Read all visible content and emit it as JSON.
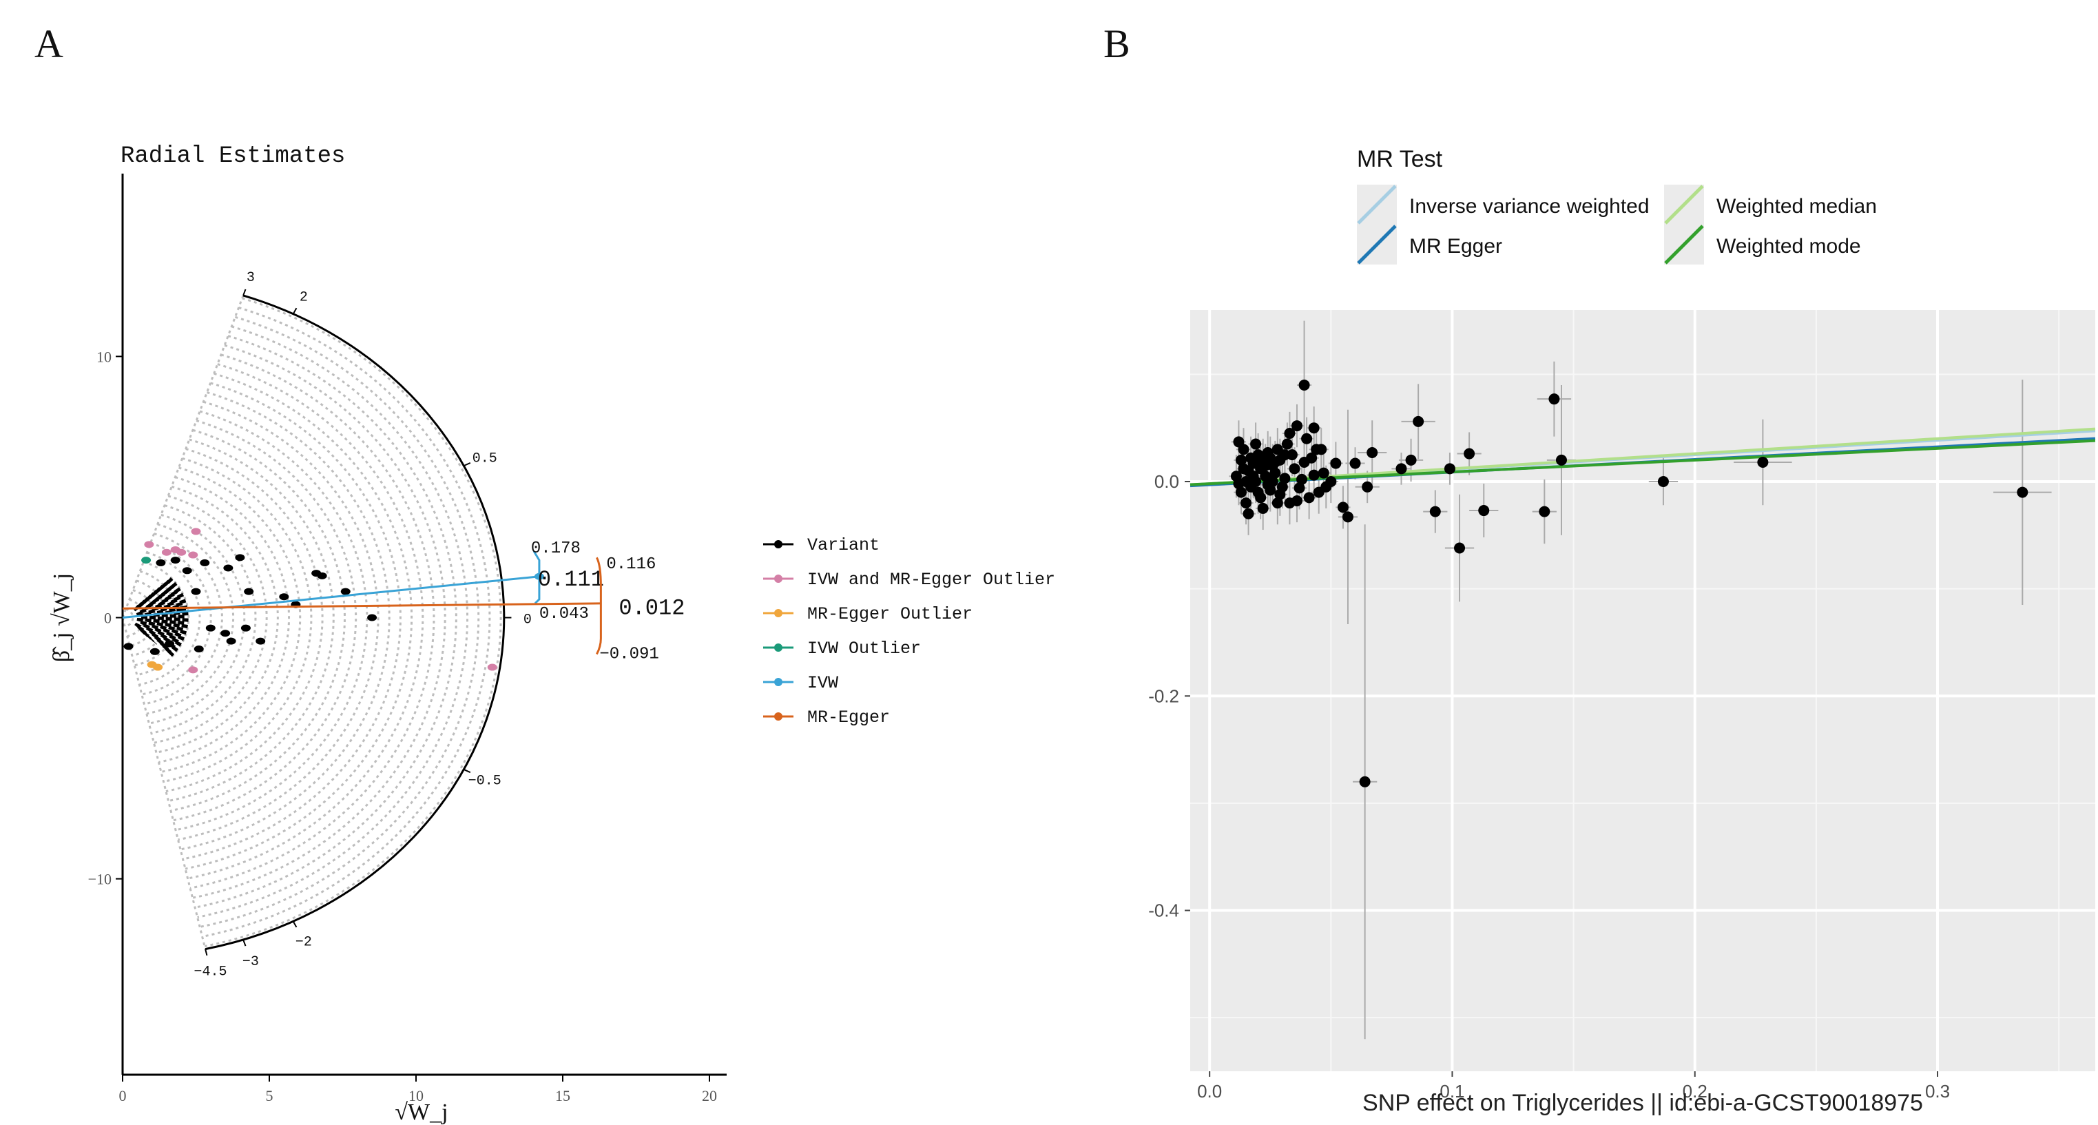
{
  "panels": {
    "a_label": "A",
    "b_label": "B"
  },
  "colors": {
    "variant": "#000000",
    "ivw_egger_outlier": "#d47fa6",
    "egger_outlier": "#f0a63c",
    "ivw_outlier": "#1a9a79",
    "ivw": "#39a3d6",
    "egger": "#d8631c",
    "panel_bg": "#ebebeb",
    "ivw_line_b": "#a6cee3",
    "egger_line_b": "#1f78b4",
    "wmedian_line_b": "#b2df8a",
    "wmode_line_b": "#33a02c"
  },
  "chart_data": [
    {
      "type": "scatter",
      "title": "Radial Estimates",
      "xlabel": "√W_j",
      "ylabel": "β̂_j √W_j",
      "xlim": [
        0,
        20
      ],
      "ylim": [
        -17.5,
        17
      ],
      "xticks": [
        0,
        5,
        10,
        15,
        20
      ],
      "yticks": [
        -10,
        0,
        10
      ],
      "xtick_labels": [
        "0",
        "5",
        "10",
        "15",
        "20"
      ],
      "ytick_labels": [
        "−10",
        "0",
        "10"
      ],
      "radial_scale": {
        "radius": 13,
        "labels": [
          {
            "value": 3,
            "text": "3"
          },
          {
            "value": 2,
            "text": "2"
          },
          {
            "value": 0.5,
            "text": "0.5"
          },
          {
            "value": 0,
            "text": "0"
          },
          {
            "value": -0.5,
            "text": "−0.5"
          },
          {
            "value": -2,
            "text": "−2"
          },
          {
            "value": -3,
            "text": "−3"
          },
          {
            "value": -4.5,
            "text": "−4.5"
          }
        ]
      },
      "estimates": {
        "ivw": {
          "estimate": 0.111,
          "upper": 0.178,
          "lower": 0.043,
          "labels": [
            "0.178",
            "0.111",
            "0.043"
          ]
        },
        "egger": {
          "estimate": 0.012,
          "upper": 0.116,
          "lower": -0.091,
          "intercept": 0.35,
          "labels": [
            "0.116",
            "0.012",
            "−0.091"
          ]
        }
      },
      "legend": {
        "position": "right",
        "entries": [
          {
            "label": "Variant",
            "color_key": "variant"
          },
          {
            "label": "IVW and MR-Egger Outlier",
            "color_key": "ivw_egger_outlier"
          },
          {
            "label": "MR-Egger Outlier",
            "color_key": "egger_outlier"
          },
          {
            "label": "IVW Outlier",
            "color_key": "ivw_outlier"
          },
          {
            "label": "IVW",
            "color_key": "ivw"
          },
          {
            "label": "MR-Egger",
            "color_key": "egger"
          }
        ]
      },
      "points": {
        "variant": [
          [
            4.0,
            2.3
          ],
          [
            4.3,
            1.0
          ],
          [
            4.2,
            -0.4
          ],
          [
            3.5,
            -0.6
          ],
          [
            3.7,
            -0.9
          ],
          [
            3.6,
            1.9
          ],
          [
            4.7,
            -0.9
          ],
          [
            5.5,
            0.8
          ],
          [
            5.9,
            0.5
          ],
          [
            6.6,
            1.7
          ],
          [
            6.8,
            1.6
          ],
          [
            7.6,
            1.0
          ],
          [
            8.5,
            0.0
          ],
          [
            2.8,
            2.1
          ],
          [
            2.5,
            1.0
          ],
          [
            3.0,
            -0.4
          ],
          [
            2.6,
            -1.2
          ],
          [
            0.2,
            -1.1
          ],
          [
            1.3,
            2.1
          ],
          [
            1.8,
            2.2
          ],
          [
            2.2,
            1.8
          ],
          [
            1.1,
            -1.3
          ],
          [
            1.6,
            -1.0
          ],
          [
            2.0,
            0.3
          ]
        ],
        "ivw_egger_outlier": [
          [
            0.9,
            2.8
          ],
          [
            1.5,
            2.5
          ],
          [
            1.8,
            2.6
          ],
          [
            2.0,
            2.5
          ],
          [
            2.4,
            2.4
          ],
          [
            2.5,
            3.3
          ],
          [
            2.4,
            -2.0
          ],
          [
            12.6,
            -1.9
          ]
        ],
        "egger_outlier": [
          [
            1.0,
            -1.8
          ],
          [
            1.2,
            -1.9
          ]
        ],
        "ivw_outlier": [
          [
            0.8,
            2.2
          ]
        ]
      }
    },
    {
      "type": "scatter",
      "title": "",
      "xlabel": "SNP effect on Triglycerides || id:ebi-a-GCST90018975",
      "ylabel": "",
      "xlim": [
        -0.008,
        0.365
      ],
      "ylim": [
        -0.55,
        0.16
      ],
      "xticks": [
        0.0,
        0.1,
        0.2,
        0.3
      ],
      "yticks": [
        0.0,
        -0.2,
        -0.4
      ],
      "xtick_labels": [
        "0.0",
        "0.1",
        "0.2",
        "0.3"
      ],
      "ytick_labels": [
        "0.0",
        "-0.2",
        "-0.4"
      ],
      "legend": {
        "title": "MR Test",
        "position": "top",
        "entries": [
          {
            "label": "Inverse variance weighted",
            "color_key": "ivw_line_b"
          },
          {
            "label": "MR Egger",
            "color_key": "egger_line_b"
          },
          {
            "label": "Weighted median",
            "color_key": "wmedian_line_b"
          },
          {
            "label": "Weighted mode",
            "color_key": "wmode_line_b"
          }
        ]
      },
      "lines": [
        {
          "name": "Inverse variance weighted",
          "color_key": "ivw_line_b",
          "slope": 0.135,
          "intercept": -0.002
        },
        {
          "name": "Weighted median",
          "color_key": "wmedian_line_b",
          "slope": 0.14,
          "intercept": -0.002
        },
        {
          "name": "MR Egger",
          "color_key": "egger_line_b",
          "slope": 0.118,
          "intercept": -0.003
        },
        {
          "name": "Weighted mode",
          "color_key": "wmode_line_b",
          "slope": 0.11,
          "intercept": -0.002
        }
      ],
      "points": [
        {
          "x": 0.039,
          "y": 0.09,
          "xerr": 0.003,
          "yerr": 0.06
        },
        {
          "x": 0.086,
          "y": 0.056,
          "xerr": 0.007,
          "yerr": 0.035
        },
        {
          "x": 0.142,
          "y": 0.077,
          "xerr": 0.007,
          "yerr": 0.035
        },
        {
          "x": 0.145,
          "y": 0.02,
          "xerr": 0.006,
          "yerr": 0.07
        },
        {
          "x": 0.107,
          "y": 0.026,
          "xerr": 0.005,
          "yerr": 0.02
        },
        {
          "x": 0.083,
          "y": 0.02,
          "xerr": 0.005,
          "yerr": 0.02
        },
        {
          "x": 0.099,
          "y": 0.012,
          "xerr": 0.004,
          "yerr": 0.015
        },
        {
          "x": 0.079,
          "y": 0.012,
          "xerr": 0.004,
          "yerr": 0.015
        },
        {
          "x": 0.067,
          "y": 0.027,
          "xerr": 0.006,
          "yerr": 0.03
        },
        {
          "x": 0.187,
          "y": 0.0,
          "xerr": 0.006,
          "yerr": 0.022
        },
        {
          "x": 0.228,
          "y": 0.018,
          "xerr": 0.012,
          "yerr": 0.04
        },
        {
          "x": 0.335,
          "y": -0.01,
          "xerr": 0.012,
          "yerr": 0.105
        },
        {
          "x": 0.093,
          "y": -0.028,
          "xerr": 0.005,
          "yerr": 0.02
        },
        {
          "x": 0.103,
          "y": -0.062,
          "xerr": 0.006,
          "yerr": 0.05
        },
        {
          "x": 0.113,
          "y": -0.027,
          "xerr": 0.006,
          "yerr": 0.025
        },
        {
          "x": 0.138,
          "y": -0.028,
          "xerr": 0.005,
          "yerr": 0.03
        },
        {
          "x": 0.064,
          "y": -0.28,
          "xerr": 0.005,
          "yerr": 0.24
        },
        {
          "x": 0.057,
          "y": -0.033,
          "xerr": 0.004,
          "yerr": 0.1
        },
        {
          "x": 0.065,
          "y": -0.005,
          "xerr": 0.005,
          "yerr": 0.015
        },
        {
          "x": 0.06,
          "y": 0.017,
          "xerr": 0.004,
          "yerr": 0.015
        },
        {
          "x": 0.055,
          "y": -0.024,
          "xerr": 0.003,
          "yerr": 0.02
        },
        {
          "x": 0.052,
          "y": 0.017,
          "xerr": 0.003,
          "yerr": 0.02
        },
        {
          "x": 0.046,
          "y": 0.03,
          "xerr": 0.003,
          "yerr": 0.02
        },
        {
          "x": 0.048,
          "y": -0.005,
          "xerr": 0.003,
          "yerr": 0.02
        },
        {
          "x": 0.043,
          "y": 0.05,
          "xerr": 0.003,
          "yerr": 0.02
        },
        {
          "x": 0.036,
          "y": 0.052,
          "xerr": 0.003,
          "yerr": 0.02
        },
        {
          "x": 0.033,
          "y": 0.045,
          "xerr": 0.003,
          "yerr": 0.02
        },
        {
          "x": 0.04,
          "y": 0.04,
          "xerr": 0.003,
          "yerr": 0.02
        },
        {
          "x": 0.031,
          "y": 0.025,
          "xerr": 0.003,
          "yerr": 0.02
        },
        {
          "x": 0.028,
          "y": 0.03,
          "xerr": 0.003,
          "yerr": 0.02
        },
        {
          "x": 0.026,
          "y": 0.015,
          "xerr": 0.003,
          "yerr": 0.02
        },
        {
          "x": 0.024,
          "y": 0.027,
          "xerr": 0.003,
          "yerr": 0.02
        },
        {
          "x": 0.022,
          "y": 0.02,
          "xerr": 0.003,
          "yerr": 0.02
        },
        {
          "x": 0.02,
          "y": 0.025,
          "xerr": 0.003,
          "yerr": 0.02
        },
        {
          "x": 0.018,
          "y": 0.017,
          "xerr": 0.003,
          "yerr": 0.02
        },
        {
          "x": 0.016,
          "y": 0.01,
          "xerr": 0.003,
          "yerr": 0.02
        },
        {
          "x": 0.014,
          "y": 0.03,
          "xerr": 0.003,
          "yerr": 0.02
        },
        {
          "x": 0.012,
          "y": 0.037,
          "xerr": 0.003,
          "yerr": 0.02
        },
        {
          "x": 0.011,
          "y": 0.005,
          "xerr": 0.003,
          "yerr": 0.02
        },
        {
          "x": 0.013,
          "y": -0.01,
          "xerr": 0.003,
          "yerr": 0.02
        },
        {
          "x": 0.015,
          "y": -0.02,
          "xerr": 0.003,
          "yerr": 0.02
        },
        {
          "x": 0.017,
          "y": -0.005,
          "xerr": 0.003,
          "yerr": 0.02
        },
        {
          "x": 0.019,
          "y": 0.0,
          "xerr": 0.003,
          "yerr": 0.02
        },
        {
          "x": 0.021,
          "y": -0.015,
          "xerr": 0.003,
          "yerr": 0.02
        },
        {
          "x": 0.023,
          "y": 0.005,
          "xerr": 0.003,
          "yerr": 0.02
        },
        {
          "x": 0.025,
          "y": -0.008,
          "xerr": 0.003,
          "yerr": 0.02
        },
        {
          "x": 0.027,
          "y": 0.008,
          "xerr": 0.003,
          "yerr": 0.02
        },
        {
          "x": 0.029,
          "y": -0.012,
          "xerr": 0.003,
          "yerr": 0.02
        },
        {
          "x": 0.031,
          "y": 0.003,
          "xerr": 0.003,
          "yerr": 0.02
        },
        {
          "x": 0.033,
          "y": -0.02,
          "xerr": 0.003,
          "yerr": 0.02
        },
        {
          "x": 0.035,
          "y": 0.012,
          "xerr": 0.003,
          "yerr": 0.02
        },
        {
          "x": 0.037,
          "y": -0.006,
          "xerr": 0.003,
          "yerr": 0.02
        },
        {
          "x": 0.039,
          "y": 0.018,
          "xerr": 0.003,
          "yerr": 0.02
        },
        {
          "x": 0.041,
          "y": -0.015,
          "xerr": 0.003,
          "yerr": 0.02
        },
        {
          "x": 0.043,
          "y": 0.006,
          "xerr": 0.003,
          "yerr": 0.02
        },
        {
          "x": 0.045,
          "y": -0.01,
          "xerr": 0.003,
          "yerr": 0.02
        },
        {
          "x": 0.013,
          "y": 0.02,
          "xerr": 0.003,
          "yerr": 0.02
        },
        {
          "x": 0.016,
          "y": -0.03,
          "xerr": 0.003,
          "yerr": 0.02
        },
        {
          "x": 0.019,
          "y": 0.035,
          "xerr": 0.003,
          "yerr": 0.02
        },
        {
          "x": 0.022,
          "y": -0.025,
          "xerr": 0.003,
          "yerr": 0.02
        },
        {
          "x": 0.025,
          "y": 0.022,
          "xerr": 0.003,
          "yerr": 0.02
        },
        {
          "x": 0.028,
          "y": -0.02,
          "xerr": 0.003,
          "yerr": 0.02
        },
        {
          "x": 0.012,
          "y": -0.002,
          "xerr": 0.003,
          "yerr": 0.02
        },
        {
          "x": 0.014,
          "y": 0.012,
          "xerr": 0.003,
          "yerr": 0.02
        },
        {
          "x": 0.018,
          "y": 0.005,
          "xerr": 0.003,
          "yerr": 0.02
        },
        {
          "x": 0.021,
          "y": 0.012,
          "xerr": 0.003,
          "yerr": 0.02
        },
        {
          "x": 0.024,
          "y": -0.003,
          "xerr": 0.003,
          "yerr": 0.02
        },
        {
          "x": 0.027,
          "y": 0.018,
          "xerr": 0.003,
          "yerr": 0.02
        },
        {
          "x": 0.03,
          "y": -0.005,
          "xerr": 0.003,
          "yerr": 0.02
        },
        {
          "x": 0.034,
          "y": 0.025,
          "xerr": 0.003,
          "yerr": 0.02
        },
        {
          "x": 0.038,
          "y": 0.002,
          "xerr": 0.003,
          "yerr": 0.02
        },
        {
          "x": 0.042,
          "y": 0.022,
          "xerr": 0.003,
          "yerr": 0.02
        },
        {
          "x": 0.047,
          "y": 0.008,
          "xerr": 0.003,
          "yerr": 0.02
        },
        {
          "x": 0.036,
          "y": -0.018,
          "xerr": 0.003,
          "yerr": 0.02
        },
        {
          "x": 0.032,
          "y": 0.035,
          "xerr": 0.003,
          "yerr": 0.02
        },
        {
          "x": 0.015,
          "y": 0.0,
          "xerr": 0.003,
          "yerr": 0.02
        },
        {
          "x": 0.017,
          "y": 0.022,
          "xerr": 0.003,
          "yerr": 0.02
        },
        {
          "x": 0.02,
          "y": -0.01,
          "xerr": 0.003,
          "yerr": 0.02
        },
        {
          "x": 0.023,
          "y": 0.015,
          "xerr": 0.003,
          "yerr": 0.02
        },
        {
          "x": 0.026,
          "y": 0.0,
          "xerr": 0.003,
          "yerr": 0.02
        },
        {
          "x": 0.029,
          "y": 0.02,
          "xerr": 0.003,
          "yerr": 0.02
        },
        {
          "x": 0.044,
          "y": 0.03,
          "xerr": 0.003,
          "yerr": 0.02
        },
        {
          "x": 0.05,
          "y": 0.0,
          "xerr": 0.003,
          "yerr": 0.02
        }
      ]
    }
  ]
}
